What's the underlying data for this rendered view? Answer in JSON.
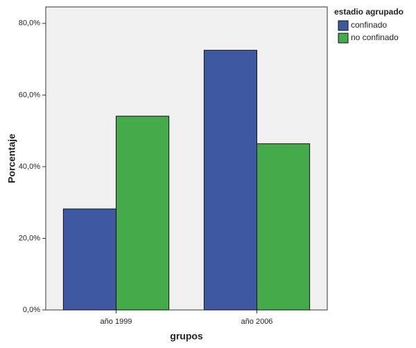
{
  "chart_data": {
    "type": "bar",
    "x_label": "grupos",
    "y_label": "Porcentaje",
    "legend_title": "estadio agrupado",
    "categories": [
      "año 1999",
      "año 2006"
    ],
    "series": [
      {
        "name": "confinado",
        "color": "#3f58a2",
        "values": [
          28.2,
          72.5
        ]
      },
      {
        "name": "no confinado",
        "color": "#45ab4a",
        "values": [
          54.1,
          46.4
        ]
      }
    ],
    "ylim": [
      0,
      84.6
    ],
    "yticks": [
      {
        "value": 0,
        "label": "0,0%"
      },
      {
        "value": 20,
        "label": "20,0%"
      },
      {
        "value": 40,
        "label": "40,0%"
      },
      {
        "value": 60,
        "label": "60,0%"
      },
      {
        "value": 80,
        "label": "80,0%"
      }
    ]
  }
}
